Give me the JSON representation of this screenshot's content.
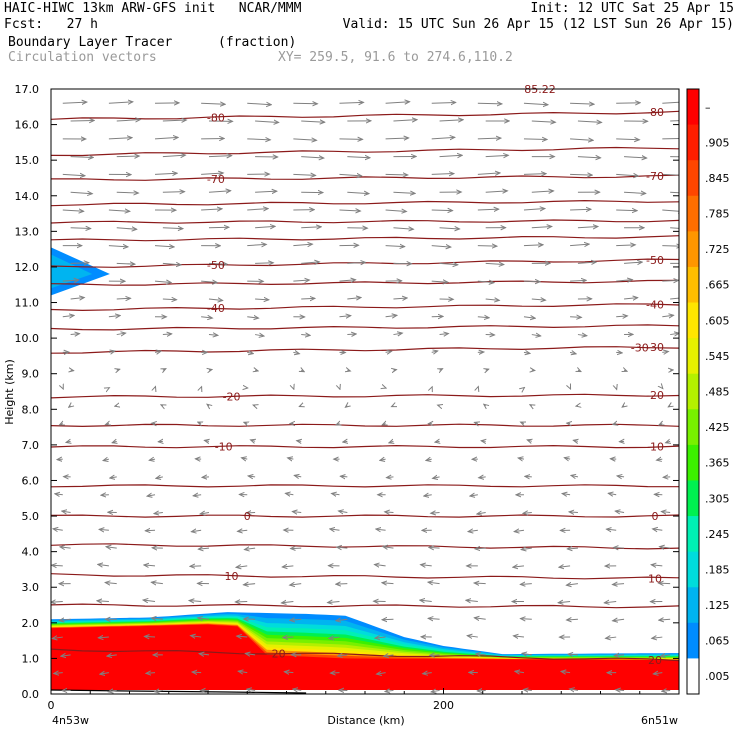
{
  "header": {
    "line1_left": "HAIC-HIWC 13km ARW-GFS init   NCAR/MMM",
    "line1_right": "Init: 12 UTC Sat 25 Apr 15",
    "line2_left": "Fcst:   27 h",
    "line2_right": "Valid: 15 UTC Sun 26 Apr 15 (12 LST Sun 26 Apr 15)",
    "line3_field": "Boundary Layer Tracer",
    "line3_units": "(fraction)",
    "line4_vectors": "Circulation vectors",
    "line4_xy": "XY= 259.5, 91.6 to 274.6,110.2"
  },
  "colors": {
    "contour": "#8b1a1a",
    "vector": "#808080",
    "frame": "#000000"
  },
  "chart_data": {
    "type": "heatmap",
    "title": "Boundary Layer Tracer",
    "units": "(fraction)",
    "xlabel": "Distance (km)",
    "ylabel": "Height (km)",
    "x_ticks": [
      "0",
      "200"
    ],
    "x_endpoint_labels": [
      "4n53w",
      "6n51w"
    ],
    "xlim": [
      0,
      320
    ],
    "ylim": [
      0,
      17
    ],
    "y_ticks": [
      "0.0",
      "1.0",
      "2.0",
      "3.0",
      "4.0",
      "5.0",
      "6.0",
      "7.0",
      "8.0",
      "9.0",
      "10.0",
      "11.0",
      "12.0",
      "13.0",
      "14.0",
      "15.0",
      "16.0",
      "17.0"
    ],
    "colorbar_labels": [
      "–",
      ".905",
      ".845",
      ".785",
      ".725",
      ".665",
      ".605",
      ".545",
      ".485",
      ".425",
      ".365",
      ".305",
      ".245",
      ".185",
      ".125",
      ".065",
      ".005"
    ],
    "colorbar_colors": [
      "#ff0000",
      "#ff1e00",
      "#ff4600",
      "#ff6e00",
      "#ff9600",
      "#ffbe00",
      "#ffe600",
      "#e6f000",
      "#b4f000",
      "#78f000",
      "#3cf000",
      "#00f050",
      "#00f0b4",
      "#00dcdc",
      "#00b4f0",
      "#008cff",
      "#ffffff"
    ],
    "tracer_top_km": [
      {
        "x": 0,
        "top": 2.1
      },
      {
        "x": 50,
        "top": 2.15
      },
      {
        "x": 90,
        "top": 2.3
      },
      {
        "x": 130,
        "top": 2.25
      },
      {
        "x": 150,
        "top": 2.2
      },
      {
        "x": 180,
        "top": 1.6
      },
      {
        "x": 200,
        "top": 1.35
      },
      {
        "x": 230,
        "top": 1.12
      },
      {
        "x": 320,
        "top": 1.15
      }
    ],
    "tracer_core_top_km": [
      {
        "x": 0,
        "top": 1.85
      },
      {
        "x": 80,
        "top": 1.95
      },
      {
        "x": 95,
        "top": 1.9
      },
      {
        "x": 110,
        "top": 1.1
      },
      {
        "x": 150,
        "top": 1.0
      },
      {
        "x": 320,
        "top": 0.95
      }
    ],
    "elevated_plume": {
      "x0": 0,
      "x1": 30,
      "y_top": 12.55,
      "y_tip": 11.8,
      "y_bottom": 11.2
    },
    "temperature_contours": [
      {
        "label": "-80",
        "y_left": 16.15,
        "y_right": 16.35,
        "label_x": 84
      },
      {
        "label": "-70",
        "y_left": 14.45,
        "y_right": 14.55,
        "label_x": 84
      },
      {
        "label": "-50",
        "y_left": 12.0,
        "y_right": 12.2,
        "label_x": 84
      },
      {
        "label": "-40",
        "y_left": 10.8,
        "y_right": 10.95,
        "label_x": 84
      },
      {
        "label": "-30",
        "y_left": 9.6,
        "y_right": 9.75,
        "label_x": 300
      },
      {
        "label": "-20",
        "y_left": 8.35,
        "y_right": 8.4,
        "label_x": 92
      },
      {
        "label": "-10",
        "y_left": 6.95,
        "y_right": 6.95,
        "label_x": 88
      },
      {
        "label": "0",
        "y_left": 5.0,
        "y_right": 5.0,
        "label_x": 100
      },
      {
        "label": "10",
        "y_left": 3.35,
        "y_right": 3.25,
        "label_x": 92
      },
      {
        "label": "20",
        "y_left": 1.25,
        "y_right": 0.95,
        "label_x": 116
      },
      {
        "label": "",
        "y_left": 15.15,
        "y_right": 15.35,
        "label_x": 0
      },
      {
        "label": "",
        "y_left": 13.75,
        "y_right": 13.85,
        "label_x": 0
      },
      {
        "label": "",
        "y_left": 13.25,
        "y_right": 13.3,
        "label_x": 0
      },
      {
        "label": "",
        "y_left": 12.75,
        "y_right": 12.85,
        "label_x": 0
      },
      {
        "label": "",
        "y_left": 11.5,
        "y_right": 11.6,
        "label_x": 0
      },
      {
        "label": "",
        "y_left": 10.25,
        "y_right": 10.35,
        "label_x": 0
      },
      {
        "label": "",
        "y_left": 7.55,
        "y_right": 7.55,
        "label_x": 0
      },
      {
        "label": "",
        "y_left": 5.85,
        "y_right": 5.85,
        "label_x": 0
      },
      {
        "label": "",
        "y_left": 4.2,
        "y_right": 4.1,
        "label_x": 0
      },
      {
        "label": "",
        "y_left": 2.5,
        "y_right": 2.45,
        "label_x": 0
      }
    ],
    "top_partial_label": "85.22",
    "wind_speed_by_level": [
      {
        "h": 16.6,
        "u": 1.0
      },
      {
        "h": 14.0,
        "u": 0.9
      },
      {
        "h": 12.0,
        "u": 0.75
      },
      {
        "h": 10.0,
        "u": 0.35
      },
      {
        "h": 9.0,
        "u": 0.1
      },
      {
        "h": 8.0,
        "u": -0.1
      },
      {
        "h": 6.0,
        "u": -0.3
      },
      {
        "h": 4.0,
        "u": -0.45
      },
      {
        "h": 2.5,
        "u": -0.5
      },
      {
        "h": 0.2,
        "u": -0.35
      }
    ]
  }
}
